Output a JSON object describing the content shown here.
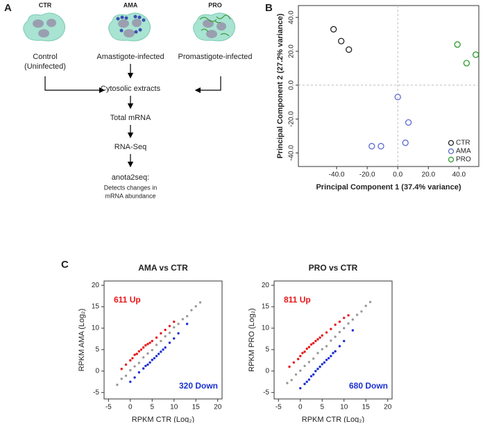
{
  "panel_a": {
    "label": "A",
    "cells": [
      {
        "name": "CTR",
        "lines": [
          "Control",
          "(Uninfected)"
        ]
      },
      {
        "name": "AMA",
        "lines": [
          "Amastigote-infected"
        ]
      },
      {
        "name": "PRO",
        "lines": [
          "Promastigote-infected"
        ]
      }
    ],
    "steps": [
      "Cytosolic extracts",
      "Total mRNA",
      "RNA-Seq",
      "anota2seq:"
    ],
    "note": [
      "Detects changes in",
      "mRNA abundance"
    ]
  },
  "panel_b": {
    "label": "B"
  },
  "panel_c": {
    "label": "C"
  },
  "chart_data": [
    {
      "type": "scatter",
      "xlabel": "Principal Component 1 (37.4% variance)",
      "ylabel": "Principal Component 2 (27.2% variance)",
      "xlim": [
        -65,
        53
      ],
      "ylim": [
        -48,
        47
      ],
      "xticks": [
        {
          "value": -40,
          "label": "-40.0"
        },
        {
          "value": -20,
          "label": "-20.0"
        },
        {
          "value": 0,
          "label": "0.0"
        },
        {
          "value": 20,
          "label": "20.0"
        },
        {
          "value": 40,
          "label": "40.0"
        }
      ],
      "yticks": [
        {
          "value": -40,
          "label": "-40.0"
        },
        {
          "value": -20,
          "label": "-20.0"
        },
        {
          "value": 0,
          "label": "0.0"
        },
        {
          "value": 20,
          "label": "20.0"
        },
        {
          "value": 40,
          "label": "40.0"
        }
      ],
      "ref_lines": {
        "x": 0,
        "y": 0
      },
      "hollow": true,
      "legend": "lower right",
      "series": [
        {
          "name": "CTR",
          "color": "#222222",
          "x": [
            -42,
            -37,
            -32
          ],
          "values": [
            33,
            26,
            21
          ]
        },
        {
          "name": "AMA",
          "color": "#5a6acf",
          "x": [
            0,
            7,
            5,
            -17,
            -11
          ],
          "values": [
            -7,
            -22,
            -34,
            -36,
            -36
          ]
        },
        {
          "name": "PRO",
          "color": "#2a9a2a",
          "x": [
            39,
            51,
            45
          ],
          "values": [
            24,
            18,
            13
          ]
        }
      ]
    },
    {
      "type": "scatter",
      "title": "AMA vs CTR",
      "xlabel": "RPKM CTR (Log₂)",
      "ylabel": "RPKM AMA (Log₂)",
      "xlim": [
        -6,
        21
      ],
      "ylim": [
        -6.5,
        21
      ],
      "xticks": [
        -5,
        0,
        5,
        10,
        15,
        20
      ],
      "yticks": [
        -5,
        0,
        5,
        10,
        15,
        20
      ],
      "annotations": [
        {
          "text": "611 Up",
          "color": "#e8161a"
        },
        {
          "text": "320 Down",
          "color": "#1a2fd0"
        }
      ],
      "series": [
        {
          "color": "#9a9a9a",
          "x": [
            -3,
            -2,
            -1,
            0,
            1,
            2,
            3,
            4,
            5,
            6,
            7,
            8,
            9,
            10,
            11,
            12,
            13,
            14,
            15,
            16
          ],
          "values": [
            -3.2,
            -1.8,
            -1.1,
            0.2,
            1.1,
            1.9,
            3.2,
            4.1,
            4.9,
            6.1,
            7,
            8.1,
            8.9,
            10.2,
            11,
            12.1,
            12.8,
            14.2,
            15.1,
            16
          ]
        },
        {
          "color": "#e8161a",
          "x": [
            -2,
            -1,
            0,
            0.5,
            1,
            1.5,
            2,
            2.5,
            3,
            3.5,
            4,
            4.5,
            5,
            6,
            7,
            8,
            9,
            10
          ],
          "values": [
            0.5,
            1.5,
            2.5,
            3,
            3.8,
            4,
            4.6,
            5,
            5.5,
            6,
            6.3,
            6.6,
            7,
            7.8,
            8.8,
            9.6,
            10.5,
            11.5
          ]
        },
        {
          "color": "#1a2fd0",
          "x": [
            0,
            1,
            2,
            3,
            3.5,
            4,
            4.5,
            5,
            5.5,
            6,
            6.5,
            7,
            7.5,
            8,
            9,
            10,
            11,
            13
          ],
          "values": [
            -2.5,
            -1.5,
            -0.3,
            0.6,
            1.2,
            1.5,
            2,
            2.6,
            3,
            3.5,
            4,
            4.5,
            5,
            5.5,
            6.6,
            7.6,
            8.8,
            11
          ]
        }
      ]
    },
    {
      "type": "scatter",
      "title": "PRO vs CTR",
      "xlabel": "RPKM CTR (Log₂)",
      "ylabel": "RPKM PRO (Log₂)",
      "xlim": [
        -6,
        21
      ],
      "ylim": [
        -6.5,
        21
      ],
      "xticks": [
        -5,
        0,
        5,
        10,
        15,
        20
      ],
      "yticks": [
        -5,
        0,
        5,
        10,
        15,
        20
      ],
      "annotations": [
        {
          "text": "811 Up",
          "color": "#e8161a"
        },
        {
          "text": "680 Down",
          "color": "#1a2fd0"
        }
      ],
      "series": [
        {
          "color": "#9a9a9a",
          "x": [
            -3,
            -2,
            -1,
            0,
            1,
            2,
            3,
            4,
            5,
            6,
            7,
            8,
            9,
            10,
            11,
            12,
            13,
            14,
            15,
            16
          ],
          "values": [
            -2.8,
            -2.1,
            -0.8,
            0.1,
            1.2,
            2.1,
            2.9,
            4.2,
            5.1,
            5.8,
            7.1,
            8,
            9.1,
            10,
            11.1,
            12,
            13.1,
            13.9,
            15.2,
            16.1
          ]
        },
        {
          "color": "#e8161a",
          "x": [
            -2.5,
            -1.5,
            -0.5,
            0,
            0.5,
            1,
            1.5,
            2,
            2.5,
            3,
            3.5,
            4,
            4.5,
            5,
            6,
            7,
            8,
            9,
            10,
            11
          ],
          "values": [
            1,
            2,
            2.8,
            3.5,
            4.2,
            4.5,
            5.2,
            5.6,
            6.2,
            6.5,
            7,
            7.4,
            7.8,
            8.3,
            9,
            9.8,
            10.8,
            11.5,
            12.4,
            13
          ]
        },
        {
          "color": "#1a2fd0",
          "x": [
            0,
            1,
            1.5,
            2,
            2.5,
            3,
            3.5,
            4,
            4.5,
            5,
            5.5,
            6,
            6.5,
            7,
            7.5,
            8,
            9,
            10,
            12
          ],
          "values": [
            -4,
            -3,
            -2.5,
            -2,
            -1.2,
            -0.8,
            0,
            0.5,
            1,
            1.6,
            2,
            2.6,
            3,
            3.5,
            4.2,
            4.6,
            5.8,
            7,
            9.5
          ]
        }
      ]
    }
  ]
}
